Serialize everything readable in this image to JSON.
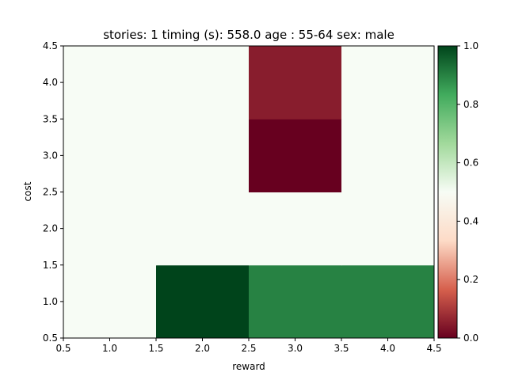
{
  "chart_data": {
    "type": "heatmap",
    "title": "stories: 1 timing (s): 558.0 age : 55-64 sex: male",
    "xlabel": "reward",
    "ylabel": "cost",
    "xlim": [
      0.5,
      4.5
    ],
    "ylim": [
      0.5,
      4.5
    ],
    "x_ticks": [
      "0.5",
      "1.0",
      "1.5",
      "2.0",
      "2.5",
      "3.0",
      "3.5",
      "4.0",
      "4.5"
    ],
    "y_ticks": [
      "0.5",
      "1.0",
      "1.5",
      "2.0",
      "2.5",
      "3.0",
      "3.5",
      "4.0",
      "4.5"
    ],
    "x": [
      1,
      2,
      3,
      4
    ],
    "y": [
      1,
      2,
      3,
      4
    ],
    "values": [
      [
        0.5,
        1.0,
        0.9,
        0.9
      ],
      [
        0.5,
        0.5,
        0.5,
        0.5
      ],
      [
        0.5,
        0.5,
        0.0,
        0.5
      ],
      [
        0.5,
        0.5,
        0.05,
        0.5
      ]
    ],
    "colormap": "RdYlGn-style red-white-green",
    "colorbar": {
      "range": [
        0,
        1
      ],
      "ticks": [
        "0.0",
        "0.2",
        "0.4",
        "0.6",
        "0.8",
        "1.0"
      ],
      "colors": [
        "#67001f",
        "#d6604d",
        "#fddbc7",
        "#f7fcf5",
        "#a1d99b",
        "#41ab5d",
        "#00441b"
      ]
    },
    "grid": false
  }
}
